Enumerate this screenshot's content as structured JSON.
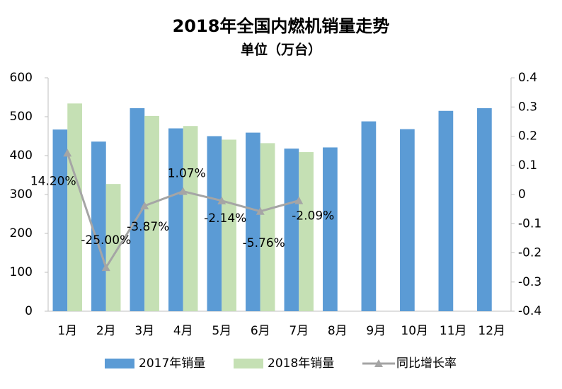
{
  "chart_data": {
    "type": "bar",
    "title": "2018年全国内燃机销量走势",
    "subtitle": "单位（万台）",
    "categories": [
      "1月",
      "2月",
      "3月",
      "4月",
      "5月",
      "6月",
      "7月",
      "8月",
      "9月",
      "10月",
      "11月",
      "12月"
    ],
    "series": [
      {
        "name": "2017年销量",
        "color": "#5b9bd5",
        "values": [
          467,
          436,
          522,
          470,
          450,
          459,
          418,
          421,
          488,
          468,
          515,
          522
        ]
      },
      {
        "name": "2018年销量",
        "color": "#c5e0b4",
        "values": [
          534,
          327,
          502,
          476,
          441,
          432,
          409,
          null,
          null,
          null,
          null,
          null
        ]
      },
      {
        "name": "同比增长率",
        "color": "#a5a5a5",
        "type": "line",
        "axis": "y2",
        "values": [
          0.142,
          -0.25,
          -0.0387,
          0.0107,
          -0.0214,
          -0.0576,
          -0.0209,
          null,
          null,
          null,
          null,
          null
        ],
        "value_labels": [
          "14.20%",
          "-25.00%",
          "-3.87%",
          "1.07%",
          "-2.14%",
          "-5.76%",
          "-2.09%",
          null,
          null,
          null,
          null,
          null
        ]
      }
    ],
    "ylim": [
      0,
      600
    ],
    "yticks": [
      0,
      100,
      200,
      300,
      400,
      500,
      600
    ],
    "y2lim": [
      -0.4,
      0.4
    ],
    "y2ticks": [
      -0.4,
      -0.3,
      -0.2,
      -0.1,
      0,
      0.1,
      0.2,
      0.3,
      0.4
    ],
    "legend": "bottom"
  }
}
